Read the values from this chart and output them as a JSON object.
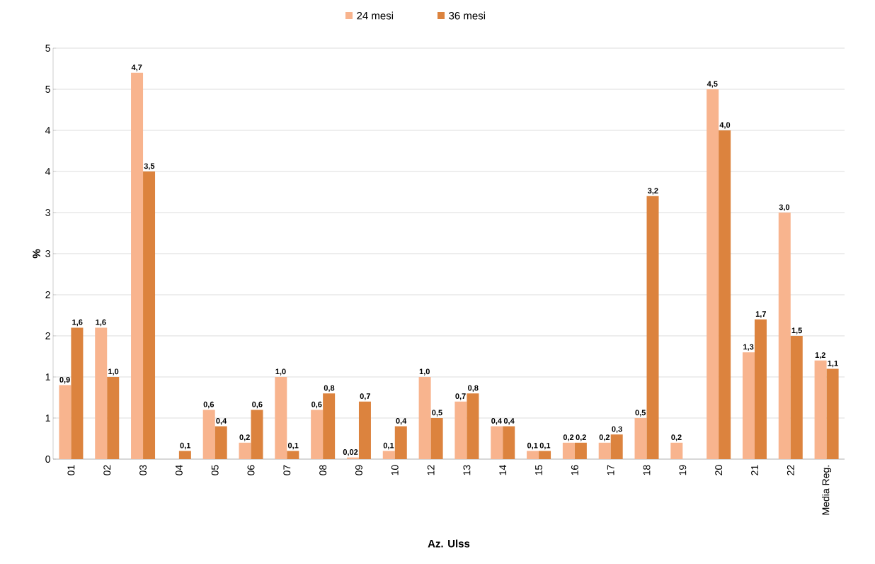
{
  "chart_data": {
    "type": "bar",
    "xlabel": "Az. Ulss",
    "ylabel": "%",
    "categories": [
      "01",
      "02",
      "03",
      "04",
      "05",
      "06",
      "07",
      "08",
      "09",
      "10",
      "12",
      "13",
      "14",
      "15",
      "16",
      "17",
      "18",
      "19",
      "20",
      "21",
      "22",
      "Media Reg."
    ],
    "series": [
      {
        "name": "24 mesi",
        "color": "#f8b48e",
        "values": [
          0.9,
          1.6,
          4.7,
          null,
          0.6,
          0.2,
          1.0,
          0.6,
          0.02,
          0.1,
          1.0,
          0.7,
          0.4,
          0.1,
          0.2,
          0.2,
          0.5,
          0.2,
          4.5,
          1.3,
          3.0,
          1.2
        ],
        "value_labels": [
          "0,9",
          "1,6",
          "4,7",
          null,
          "0,6",
          "0,2",
          "1,0",
          "0,6",
          "0,02",
          "0,1",
          "1,0",
          "0,7",
          "0,4",
          "0,1",
          "0,2",
          "0,2",
          "0,5",
          "0,2",
          "4,5",
          "1,3",
          "3,0",
          "1,2"
        ]
      },
      {
        "name": "36 mesi",
        "color": "#dc833e",
        "values": [
          1.6,
          1.0,
          3.5,
          0.1,
          0.4,
          0.6,
          0.1,
          0.8,
          0.7,
          0.4,
          0.5,
          0.8,
          0.4,
          0.1,
          0.2,
          0.3,
          3.2,
          null,
          4.0,
          1.7,
          1.5,
          1.1
        ],
        "value_labels": [
          "1,6",
          "1,0",
          "3,5",
          "0,1",
          "0,4",
          "0,6",
          "0,1",
          "0,8",
          "0,7",
          "0,4",
          "0,5",
          "0,8",
          "0,4",
          "0,1",
          "0,2",
          "0,3",
          "3,2",
          null,
          "4,0",
          "1,7",
          "1,5",
          "1,1"
        ]
      }
    ],
    "ylim": [
      0,
      5
    ],
    "yticks": [
      0,
      {
        "value": 0.5,
        "label": "1"
      },
      1,
      {
        "value": 1.5,
        "label": "2"
      },
      2,
      {
        "value": 2.5,
        "label": "3"
      },
      3,
      {
        "value": 3.5,
        "label": "4"
      },
      4,
      {
        "value": 4.5,
        "label": "5"
      },
      5
    ],
    "grid": "y",
    "legend": "top"
  }
}
